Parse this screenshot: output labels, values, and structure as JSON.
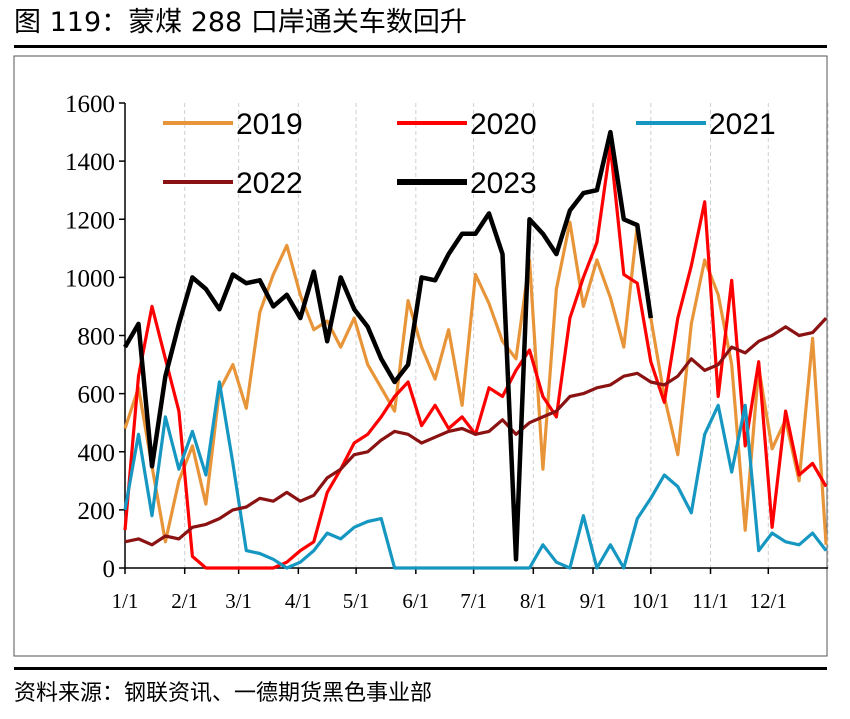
{
  "figure": {
    "title": "图 119：蒙煤 288 口岸通关车数回升",
    "source": "资料来源：钢联资讯、一德期货黑色事业部"
  },
  "chart_data": {
    "type": "line",
    "ylim": [
      0,
      1600
    ],
    "yticks": [
      "0",
      "200",
      "400",
      "600",
      "800",
      "1000",
      "1200",
      "1400",
      "1600"
    ],
    "xticks": [
      "1/1",
      "2/1",
      "3/1",
      "4/1",
      "5/1",
      "6/1",
      "7/1",
      "8/1",
      "9/1",
      "10/1",
      "11/1",
      "12/1"
    ],
    "xtick_days": [
      0,
      31,
      59,
      90,
      120,
      151,
      181,
      212,
      243,
      273,
      304,
      334
    ],
    "x_days": [
      0,
      7,
      14,
      21,
      28,
      35,
      42,
      49,
      56,
      63,
      70,
      77,
      84,
      91,
      98,
      105,
      112,
      119,
      126,
      133,
      140,
      147,
      154,
      161,
      168,
      175,
      182,
      189,
      196,
      203,
      210,
      217,
      224,
      231,
      238,
      245,
      252,
      259,
      266,
      273,
      280,
      287,
      294,
      301,
      308,
      315,
      322,
      329,
      336,
      343,
      350,
      357,
      364
    ],
    "grid": true,
    "legend_position": "top",
    "series": [
      {
        "name": "2019",
        "color": "#E8953A",
        "values": [
          480,
          620,
          350,
          90,
          300,
          420,
          220,
          610,
          700,
          550,
          880,
          1010,
          1110,
          940,
          820,
          850,
          760,
          860,
          700,
          620,
          540,
          920,
          760,
          650,
          820,
          560,
          1010,
          910,
          780,
          720,
          1060,
          340,
          960,
          1190,
          900,
          1060,
          930,
          760,
          1180,
          860,
          590,
          390,
          840,
          1060,
          940,
          700,
          130,
          690,
          410,
          510,
          300,
          790,
          80
        ]
      },
      {
        "name": "2020",
        "color": "#FF0000",
        "values": [
          130,
          660,
          900,
          720,
          540,
          40,
          0,
          0,
          0,
          0,
          0,
          0,
          20,
          60,
          90,
          260,
          340,
          430,
          460,
          520,
          590,
          640,
          490,
          560,
          480,
          520,
          460,
          620,
          590,
          680,
          750,
          590,
          520,
          860,
          1000,
          1120,
          1450,
          1010,
          980,
          710,
          570,
          860,
          1040,
          1260,
          590,
          990,
          420,
          710,
          140,
          540,
          320,
          360,
          280
        ]
      },
      {
        "name": "2021",
        "color": "#1597C2",
        "values": [
          200,
          460,
          180,
          520,
          340,
          470,
          320,
          640,
          360,
          60,
          50,
          30,
          0,
          20,
          60,
          120,
          100,
          140,
          160,
          170,
          0,
          0,
          0,
          0,
          0,
          0,
          0,
          0,
          0,
          0,
          0,
          80,
          20,
          0,
          180,
          0,
          80,
          0,
          170,
          240,
          320,
          280,
          190,
          460,
          560,
          330,
          560,
          60,
          120,
          90,
          80,
          120,
          60
        ]
      },
      {
        "name": "2022",
        "color": "#8B1212",
        "values": [
          90,
          100,
          80,
          110,
          100,
          140,
          150,
          170,
          200,
          210,
          240,
          230,
          260,
          230,
          250,
          310,
          340,
          390,
          400,
          440,
          470,
          460,
          430,
          450,
          470,
          480,
          460,
          470,
          510,
          460,
          500,
          520,
          540,
          590,
          600,
          620,
          630,
          660,
          670,
          640,
          630,
          660,
          720,
          680,
          700,
          760,
          740,
          780,
          800,
          830,
          800,
          810,
          860
        ]
      },
      {
        "name": "2023",
        "color": "#000000",
        "values": [
          760,
          840,
          350,
          660,
          840,
          1000,
          960,
          890,
          1010,
          980,
          990,
          900,
          940,
          860,
          1020,
          780,
          1000,
          890,
          830,
          720,
          640,
          700,
          1000,
          990,
          1080,
          1150,
          1150,
          1220,
          1080,
          30,
          1200,
          1150,
          1080,
          1230,
          1290,
          1300,
          1500,
          1200,
          1180,
          860,
          null,
          null,
          null,
          null,
          null,
          null,
          null,
          null,
          null,
          null,
          null,
          null,
          null
        ]
      }
    ]
  }
}
